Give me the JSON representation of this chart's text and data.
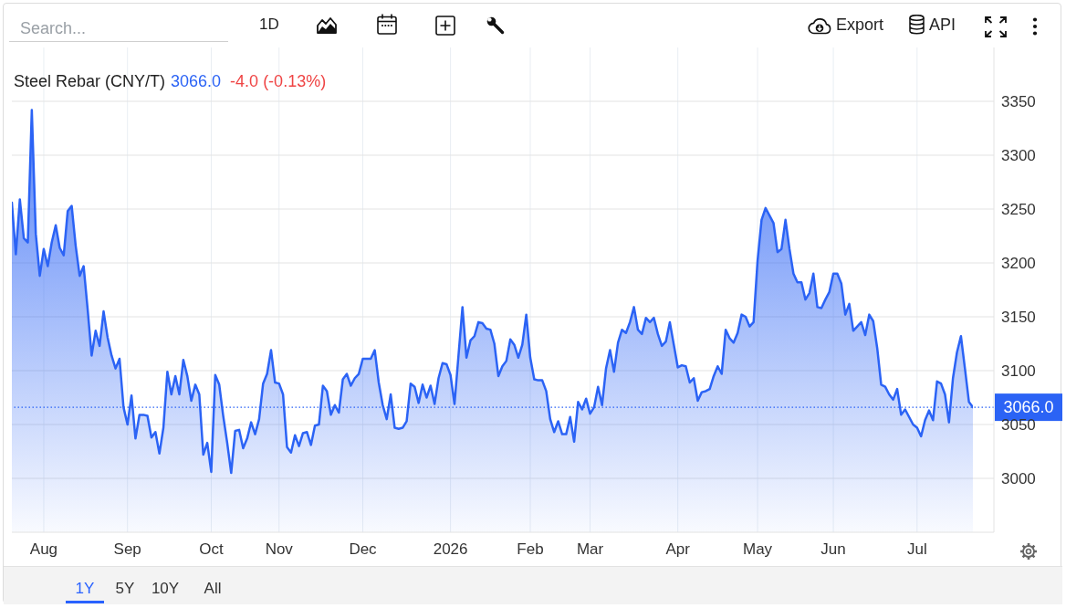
{
  "chart_data": {
    "type": "area",
    "title": "Steel Rebar (CNY/T)",
    "annotations": [
      "3066.0",
      "-4.0 (-0.13%)",
      "Search...",
      "1D",
      "Export",
      "API",
      "1Y",
      "5Y",
      "10Y",
      "All"
    ],
    "categories": [
      null,
      null,
      null,
      null,
      null,
      null,
      null,
      null,
      "Aug",
      null,
      null,
      null,
      null,
      null,
      null,
      null,
      null,
      null,
      null,
      null,
      null,
      null,
      null,
      null,
      null,
      null,
      null,
      null,
      null,
      "Sep",
      null,
      null,
      null,
      null,
      null,
      null,
      null,
      null,
      null,
      null,
      null,
      null,
      null,
      null,
      null,
      null,
      null,
      null,
      null,
      null,
      "Oct",
      null,
      null,
      null,
      null,
      null,
      null,
      null,
      null,
      null,
      null,
      null,
      null,
      null,
      null,
      null,
      null,
      "Nov",
      null,
      null,
      null,
      null,
      null,
      null,
      null,
      null,
      null,
      null,
      null,
      null,
      null,
      null,
      null,
      null,
      null,
      null,
      null,
      null,
      "Dec",
      null,
      null,
      null,
      null,
      null,
      null,
      null,
      null,
      null,
      null,
      null,
      null,
      null,
      null,
      null,
      null,
      null,
      null,
      null,
      null,
      null,
      "2026",
      null,
      null,
      null,
      null,
      null,
      null,
      null,
      null,
      null,
      null,
      null,
      null,
      null,
      null,
      null,
      null,
      null,
      null,
      null,
      "Feb",
      null,
      null,
      null,
      null,
      null,
      null,
      null,
      null,
      null,
      null,
      null,
      null,
      null,
      null,
      "Mar",
      null,
      null,
      null,
      null,
      null,
      null,
      null,
      null,
      null,
      null,
      null,
      null,
      null,
      null,
      null,
      null,
      null,
      null,
      null,
      null,
      null,
      "Apr",
      null,
      null,
      null,
      null,
      null,
      null,
      null,
      null,
      null,
      null,
      null,
      null,
      null,
      null,
      null,
      null,
      null,
      null,
      null,
      "May",
      null,
      null,
      null,
      null,
      null,
      null,
      null,
      null,
      null,
      null,
      null,
      null,
      null,
      null,
      null,
      null,
      null,
      null,
      "Jun",
      null,
      null,
      null,
      null,
      null,
      null,
      null,
      null,
      null,
      null,
      null,
      null,
      null,
      null,
      null,
      null,
      null,
      null,
      null,
      null,
      "Jul",
      null,
      null,
      null,
      null,
      null,
      null,
      null,
      null,
      null,
      null,
      null,
      null,
      null,
      null
    ],
    "series": [
      {
        "color": "#2b63f5",
        "values": [
          3256,
          3208,
          3259,
          3223,
          3219,
          3342,
          3227,
          3188,
          3213,
          3197,
          3219,
          3235,
          3214,
          3207,
          3248,
          3253,
          3216,
          3188,
          3197,
          3157,
          3114,
          3137,
          3123,
          3155,
          3131,
          3114,
          3102,
          3111,
          3066,
          3050,
          3077,
          3037,
          3059,
          3059,
          3058,
          3038,
          3043,
          3023,
          3047,
          3099,
          3078,
          3095,
          3078,
          3110,
          3095,
          3072,
          3087,
          3078,
          3022,
          3033,
          3006,
          3096,
          3087,
          3058,
          3033,
          3005,
          3044,
          3045,
          3028,
          3037,
          3052,
          3041,
          3055,
          3088,
          3097,
          3119,
          3089,
          3088,
          3078,
          3029,
          3024,
          3040,
          3030,
          3042,
          3043,
          3031,
          3049,
          3050,
          3086,
          3081,
          3059,
          3068,
          3061,
          3092,
          3097,
          3086,
          3093,
          3097,
          3111,
          3111,
          3111,
          3119,
          3089,
          3068,
          3055,
          3078,
          3047,
          3046,
          3047,
          3053,
          3088,
          3085,
          3070,
          3087,
          3075,
          3086,
          3069,
          3093,
          3107,
          3106,
          3096,
          3069,
          3114,
          3159,
          3112,
          3128,
          3132,
          3145,
          3144,
          3139,
          3138,
          3125,
          3095,
          3104,
          3109,
          3129,
          3124,
          3112,
          3124,
          3152,
          3112,
          3092,
          3091,
          3091,
          3081,
          3055,
          3043,
          3053,
          3041,
          3041,
          3057,
          3034,
          3071,
          3064,
          3074,
          3060,
          3066,
          3085,
          3068,
          3102,
          3119,
          3099,
          3126,
          3138,
          3135,
          3145,
          3159,
          3138,
          3134,
          3149,
          3145,
          3149,
          3134,
          3123,
          3127,
          3145,
          3124,
          3103,
          3105,
          3104,
          3089,
          3093,
          3072,
          3080,
          3081,
          3083,
          3095,
          3104,
          3097,
          3138,
          3130,
          3126,
          3135,
          3152,
          3150,
          3141,
          3145,
          3202,
          3240,
          3251,
          3244,
          3237,
          3210,
          3213,
          3240,
          3213,
          3190,
          3182,
          3182,
          3166,
          3172,
          3190,
          3159,
          3158,
          3166,
          3173,
          3190,
          3190,
          3181,
          3152,
          3162,
          3137,
          3141,
          3145,
          3133,
          3152,
          3146,
          3121,
          3087,
          3085,
          3078,
          3073,
          3083,
          3059,
          3064,
          3057,
          3050,
          3047,
          3039,
          3054,
          3063,
          3054,
          3090,
          3088,
          3078,
          3052,
          3093,
          3117,
          3132,
          3102,
          3071,
          3066
        ]
      }
    ],
    "ylim": [
      2950,
      3400
    ],
    "yticks": [
      3000,
      3050,
      3100,
      3150,
      3200,
      3250,
      3300,
      3350
    ],
    "grid": true,
    "ref_lines": [
      {
        "axis": "y",
        "value": 3066,
        "label": "3066.0",
        "color": "#2b63f5",
        "line_style": "dotted"
      }
    ]
  }
}
